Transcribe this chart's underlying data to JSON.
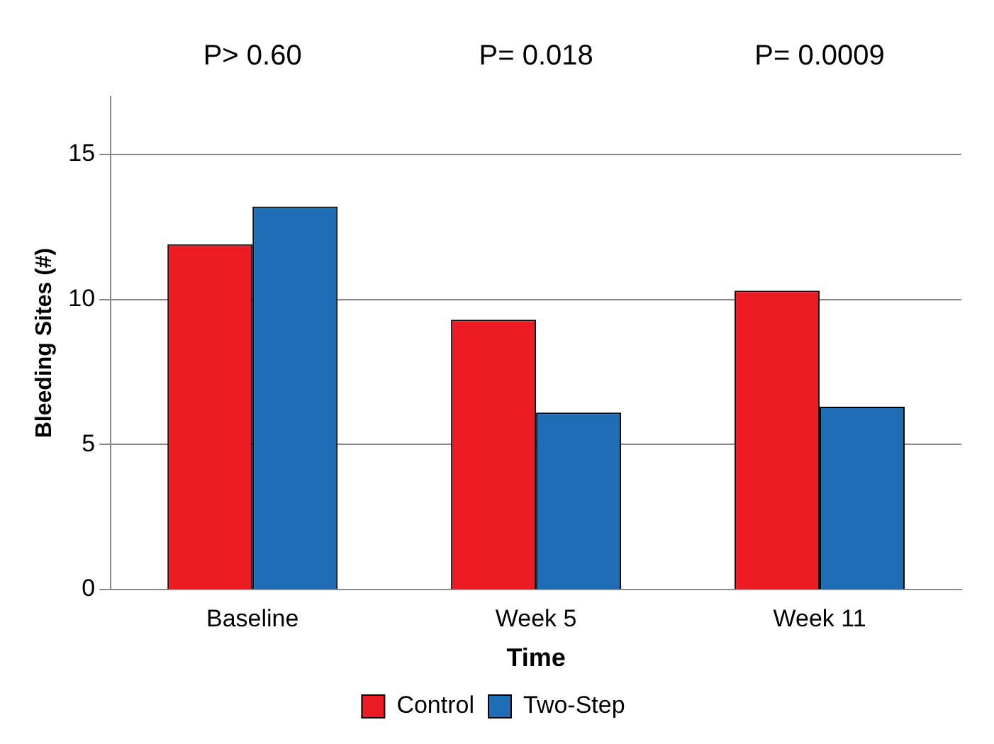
{
  "chart_data": {
    "type": "bar",
    "xlabel": "Time",
    "ylabel": "Bleeding Sites (#)",
    "categories": [
      "Baseline",
      "Week 5",
      "Week 11"
    ],
    "series": [
      {
        "name": "Control",
        "color": "#ed1c24",
        "values": [
          11.9,
          9.3,
          10.3
        ]
      },
      {
        "name": "Two-Step",
        "color": "#1f6db5",
        "values": [
          13.2,
          6.1,
          6.3
        ]
      }
    ],
    "ylim": [
      0,
      17
    ],
    "yticks": [
      0,
      5,
      10,
      15
    ],
    "grid": "y",
    "legend": "bottom",
    "annotations": [
      "P> 0.60",
      "P= 0.018",
      "P= 0.0009"
    ]
  }
}
